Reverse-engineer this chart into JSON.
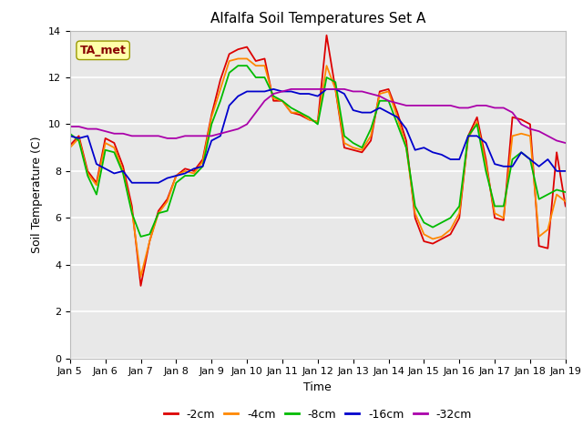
{
  "title": "Alfalfa Soil Temperatures Set A",
  "xlabel": "Time",
  "ylabel": "Soil Temperature (C)",
  "xlim": [
    0,
    14
  ],
  "ylim": [
    0,
    14
  ],
  "yticks": [
    0,
    2,
    4,
    6,
    8,
    10,
    12,
    14
  ],
  "xtick_labels": [
    "Jan 5",
    "Jan 6",
    "Jan 7",
    "Jan 8",
    "Jan 9",
    "Jan 10",
    "Jan 11",
    "Jan 12",
    "Jan 13",
    "Jan 14",
    "Jan 15",
    "Jan 16",
    "Jan 17",
    "Jan 18",
    "Jan 19"
  ],
  "fig_bg_color": "#ffffff",
  "plot_bg_color": "#e8e8e8",
  "legend_items": [
    "-2cm",
    "-4cm",
    "-8cm",
    "-16cm",
    "-32cm"
  ],
  "line_colors": [
    "#dd0000",
    "#ff8800",
    "#00bb00",
    "#0000cc",
    "#aa00aa"
  ],
  "ta_met_color": "#880000",
  "ta_met_bg": "#ffffaa",
  "ta_met_edge": "#999900",
  "grid_color": "#ffffff",
  "title_fontsize": 11,
  "axis_label_fontsize": 9,
  "tick_fontsize": 8,
  "legend_fontsize": 9,
  "x": [
    0,
    0.25,
    0.5,
    0.75,
    1,
    1.25,
    1.5,
    1.75,
    2,
    2.25,
    2.5,
    2.75,
    3,
    3.25,
    3.5,
    3.75,
    4,
    4.25,
    4.5,
    4.75,
    5,
    5.25,
    5.5,
    5.75,
    6,
    6.25,
    6.5,
    6.75,
    7,
    7.25,
    7.5,
    7.75,
    8,
    8.25,
    8.5,
    8.75,
    9,
    9.25,
    9.5,
    9.75,
    10,
    10.25,
    10.5,
    10.75,
    11,
    11.25,
    11.5,
    11.75,
    12,
    12.25,
    12.5,
    12.75,
    13,
    13.25,
    13.5,
    13.75,
    14
  ],
  "y_2cm": [
    9.1,
    9.5,
    8.0,
    7.5,
    9.4,
    9.2,
    8.2,
    6.5,
    3.1,
    5.0,
    6.3,
    6.8,
    7.8,
    8.1,
    8.0,
    8.5,
    10.4,
    11.9,
    13.0,
    13.2,
    13.3,
    12.7,
    12.8,
    11.0,
    11.0,
    10.5,
    10.4,
    10.2,
    10.1,
    13.8,
    11.5,
    9.0,
    8.9,
    8.8,
    9.3,
    11.4,
    11.5,
    10.5,
    9.3,
    6.0,
    5.0,
    4.9,
    5.1,
    5.3,
    6.0,
    9.5,
    10.3,
    8.5,
    6.0,
    5.9,
    10.3,
    10.2,
    10.0,
    4.8,
    4.7,
    8.8,
    6.5
  ],
  "y_4cm": [
    9.0,
    9.4,
    7.9,
    7.4,
    9.2,
    9.0,
    8.0,
    6.3,
    3.5,
    5.0,
    6.2,
    6.7,
    7.8,
    8.0,
    7.9,
    8.4,
    10.3,
    11.5,
    12.7,
    12.8,
    12.8,
    12.5,
    12.5,
    11.1,
    11.0,
    10.5,
    10.5,
    10.2,
    10.1,
    12.5,
    11.5,
    9.2,
    9.0,
    8.9,
    9.5,
    11.3,
    11.4,
    10.3,
    9.0,
    6.2,
    5.3,
    5.1,
    5.2,
    5.5,
    6.2,
    9.4,
    10.1,
    8.3,
    6.2,
    6.0,
    9.5,
    9.6,
    9.5,
    5.2,
    5.5,
    7.0,
    6.7
  ],
  "y_8cm": [
    9.6,
    9.3,
    7.8,
    7.0,
    8.9,
    8.8,
    7.9,
    6.2,
    5.2,
    5.3,
    6.2,
    6.3,
    7.5,
    7.8,
    7.8,
    8.2,
    10.0,
    11.0,
    12.2,
    12.5,
    12.5,
    12.0,
    12.0,
    11.2,
    11.0,
    10.7,
    10.5,
    10.3,
    10.0,
    12.0,
    11.8,
    9.5,
    9.2,
    9.0,
    9.8,
    11.0,
    11.0,
    10.0,
    9.0,
    6.5,
    5.8,
    5.6,
    5.8,
    6.0,
    6.5,
    9.5,
    10.0,
    8.0,
    6.5,
    6.5,
    8.5,
    8.8,
    8.5,
    6.8,
    7.0,
    7.2,
    7.1
  ],
  "y_16cm": [
    9.5,
    9.4,
    9.5,
    8.3,
    8.1,
    7.9,
    8.0,
    7.5,
    7.5,
    7.5,
    7.5,
    7.7,
    7.8,
    7.9,
    8.1,
    8.2,
    9.3,
    9.5,
    10.8,
    11.2,
    11.4,
    11.4,
    11.4,
    11.5,
    11.4,
    11.4,
    11.3,
    11.3,
    11.2,
    11.5,
    11.5,
    11.3,
    10.6,
    10.5,
    10.5,
    10.7,
    10.5,
    10.3,
    9.8,
    8.9,
    9.0,
    8.8,
    8.7,
    8.5,
    8.5,
    9.5,
    9.5,
    9.2,
    8.3,
    8.2,
    8.2,
    8.8,
    8.5,
    8.2,
    8.5,
    8.0,
    8.0
  ],
  "y_32cm": [
    9.9,
    9.9,
    9.8,
    9.8,
    9.7,
    9.6,
    9.6,
    9.5,
    9.5,
    9.5,
    9.5,
    9.4,
    9.4,
    9.5,
    9.5,
    9.5,
    9.5,
    9.6,
    9.7,
    9.8,
    10.0,
    10.5,
    11.0,
    11.3,
    11.4,
    11.5,
    11.5,
    11.5,
    11.5,
    11.5,
    11.5,
    11.5,
    11.4,
    11.4,
    11.3,
    11.2,
    11.0,
    10.9,
    10.8,
    10.8,
    10.8,
    10.8,
    10.8,
    10.8,
    10.7,
    10.7,
    10.8,
    10.8,
    10.7,
    10.7,
    10.5,
    10.0,
    9.8,
    9.7,
    9.5,
    9.3,
    9.2
  ]
}
